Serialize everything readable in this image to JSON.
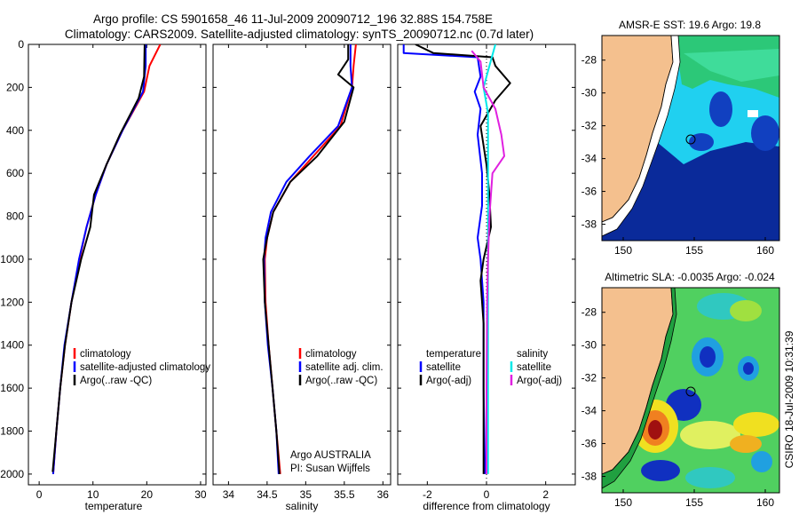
{
  "header": {
    "line1": "Argo profile: CS 5901658_46 11-Jul-2009 20090712_196 32.88S 154.758E",
    "line2": "Climatology: CARS2009. Satellite-adjusted climatology: synTS_20090712.nc (0.7d later)"
  },
  "colors": {
    "clim": "#ff0000",
    "sat": "#0000ff",
    "argo": "#000000",
    "sal_sat": "#00e8e8",
    "sal_argo": "#e020e0"
  },
  "chart_data": [
    {
      "type": "line",
      "name": "temperature",
      "xlabel": "temperature",
      "ylabel": "",
      "xlim": [
        -2,
        31
      ],
      "ylim": [
        2050,
        0
      ],
      "xticks": [
        0,
        10,
        20,
        30
      ],
      "yticks": [
        0,
        200,
        400,
        600,
        800,
        1000,
        1200,
        1400,
        1600,
        1800,
        2000
      ],
      "legend": [
        "climatology",
        "satellite-adjusted climatology",
        "Argo(..raw -QC)"
      ],
      "series": [
        {
          "name": "climatology",
          "color": "#ff0000",
          "points": [
            [
              22.5,
              0
            ],
            [
              20.5,
              100
            ],
            [
              19.5,
              220
            ],
            [
              15.5,
              400
            ],
            [
              12.5,
              560
            ],
            [
              10.5,
              700
            ],
            [
              8.8,
              850
            ],
            [
              7.5,
              1000
            ],
            [
              6.0,
              1200
            ],
            [
              4.8,
              1400
            ],
            [
              3.9,
              1600
            ],
            [
              3.2,
              1800
            ],
            [
              2.6,
              2000
            ]
          ]
        },
        {
          "name": "satellite-adjusted climatology",
          "color": "#0000ff",
          "points": [
            [
              19.8,
              0
            ],
            [
              19.8,
              100
            ],
            [
              19.3,
              220
            ],
            [
              15.5,
              400
            ],
            [
              12.5,
              560
            ],
            [
              10.5,
              700
            ],
            [
              8.8,
              850
            ],
            [
              7.4,
              1000
            ],
            [
              6.0,
              1200
            ],
            [
              4.7,
              1400
            ],
            [
              3.9,
              1600
            ],
            [
              3.2,
              1800
            ],
            [
              2.6,
              2000
            ]
          ]
        },
        {
          "name": "Argo(..raw -QC)",
          "color": "#000000",
          "points": [
            [
              19.6,
              0
            ],
            [
              19.5,
              150
            ],
            [
              18.5,
              250
            ],
            [
              15.0,
              420
            ],
            [
              12.5,
              560
            ],
            [
              10.2,
              700
            ],
            [
              9.5,
              850
            ],
            [
              7.8,
              1000
            ],
            [
              6.0,
              1200
            ],
            [
              4.8,
              1400
            ],
            [
              3.9,
              1600
            ],
            [
              3.2,
              1800
            ],
            [
              2.5,
              1990
            ]
          ]
        }
      ]
    },
    {
      "type": "line",
      "name": "salinity",
      "xlabel": "salinity",
      "xlim": [
        33.8,
        36.1
      ],
      "ylim": [
        2050,
        0
      ],
      "xticks": [
        34,
        34.5,
        35,
        35.5,
        36
      ],
      "legend": [
        "climatology",
        "satellite adj. clim.",
        "Argo(..raw -QC)"
      ],
      "annotation": [
        "Argo AUSTRALIA",
        "PI: Susan Wijffels"
      ],
      "series": [
        {
          "name": "climatology",
          "color": "#ff0000",
          "points": [
            [
              35.65,
              0
            ],
            [
              35.62,
              100
            ],
            [
              35.6,
              200
            ],
            [
              35.45,
              380
            ],
            [
              35.1,
              520
            ],
            [
              34.8,
              640
            ],
            [
              34.58,
              780
            ],
            [
              34.5,
              900
            ],
            [
              34.47,
              1000
            ],
            [
              34.48,
              1200
            ],
            [
              34.52,
              1400
            ],
            [
              34.57,
              1600
            ],
            [
              34.62,
              1800
            ],
            [
              34.67,
              2000
            ]
          ]
        },
        {
          "name": "satellite adj. clim.",
          "color": "#0000ff",
          "points": [
            [
              35.58,
              0
            ],
            [
              35.58,
              100
            ],
            [
              35.6,
              200
            ],
            [
              35.42,
              380
            ],
            [
              35.05,
              520
            ],
            [
              34.75,
              640
            ],
            [
              34.55,
              780
            ],
            [
              34.48,
              900
            ],
            [
              34.46,
              1000
            ],
            [
              34.47,
              1200
            ],
            [
              34.51,
              1400
            ],
            [
              34.57,
              1600
            ],
            [
              34.62,
              1800
            ],
            [
              34.65,
              2000
            ]
          ]
        },
        {
          "name": "Argo(..raw -QC)",
          "color": "#000000",
          "points": [
            [
              35.55,
              0
            ],
            [
              35.55,
              70
            ],
            [
              35.42,
              140
            ],
            [
              35.62,
              200
            ],
            [
              35.5,
              360
            ],
            [
              35.15,
              520
            ],
            [
              34.8,
              640
            ],
            [
              34.58,
              780
            ],
            [
              34.5,
              900
            ],
            [
              34.45,
              1000
            ],
            [
              34.47,
              1200
            ],
            [
              34.52,
              1400
            ],
            [
              34.57,
              1600
            ],
            [
              34.62,
              1800
            ],
            [
              34.66,
              2000
            ]
          ]
        }
      ]
    },
    {
      "type": "line",
      "name": "difference",
      "xlabel": "difference from climatology",
      "xlim": [
        -3,
        3
      ],
      "ylim": [
        2050,
        0
      ],
      "xticks": [
        -2,
        0,
        2
      ],
      "legend": [
        "temperature",
        "satellite",
        "Argo(-adj)",
        "salinity",
        "satellite",
        "Argo(-adj)"
      ],
      "series": [
        {
          "name": "temperature satellite",
          "color": "#0000ff",
          "points": [
            [
              -2.8,
              0
            ],
            [
              -2.8,
              40
            ],
            [
              -0.3,
              60
            ],
            [
              -0.2,
              150
            ],
            [
              -0.4,
              220
            ],
            [
              -0.2,
              300
            ],
            [
              -0.3,
              420
            ],
            [
              -0.15,
              600
            ],
            [
              -0.15,
              750
            ],
            [
              -0.3,
              900
            ],
            [
              -0.2,
              1000
            ],
            [
              -0.1,
              1200
            ],
            [
              -0.1,
              1600
            ],
            [
              -0.05,
              2000
            ]
          ]
        },
        {
          "name": "temperature Argo(-adj)",
          "color": "#000000",
          "points": [
            [
              -2.4,
              0
            ],
            [
              -1.8,
              40
            ],
            [
              0.2,
              60
            ],
            [
              0.3,
              100
            ],
            [
              0.8,
              180
            ],
            [
              0.3,
              260
            ],
            [
              -0.2,
              380
            ],
            [
              0,
              560
            ],
            [
              0.1,
              700
            ],
            [
              0.15,
              850
            ],
            [
              -0.1,
              1000
            ],
            [
              -0.2,
              1100
            ],
            [
              -0.1,
              1300
            ],
            [
              -0.1,
              1700
            ],
            [
              -0.1,
              2000
            ]
          ]
        },
        {
          "name": "salinity satellite",
          "color": "#00e8e8",
          "points": [
            [
              0.3,
              0
            ],
            [
              0.1,
              100
            ],
            [
              -0.1,
              200
            ],
            [
              0.05,
              320
            ],
            [
              0.05,
              500
            ],
            [
              0.05,
              800
            ],
            [
              0.05,
              1000
            ],
            [
              0.05,
              1400
            ],
            [
              0.05,
              2000
            ]
          ]
        },
        {
          "name": "salinity Argo(-adj)",
          "color": "#e020e0",
          "points": [
            [
              -0.5,
              30
            ],
            [
              -0.2,
              80
            ],
            [
              -0.1,
              200
            ],
            [
              0.3,
              300
            ],
            [
              0.5,
              420
            ],
            [
              0.6,
              520
            ],
            [
              0.2,
              600
            ],
            [
              0.1,
              800
            ],
            [
              0.05,
              1000
            ],
            [
              0.02,
              1200
            ],
            [
              0,
              1600
            ],
            [
              0,
              2000
            ]
          ]
        }
      ]
    },
    {
      "type": "heatmap",
      "name": "sst-map",
      "title": "AMSR-E SST: 19.6 Argo: 19.8",
      "xticks": [
        150,
        155,
        160
      ],
      "yticks": [
        -28,
        -30,
        -32,
        -34,
        -36,
        -38
      ],
      "xlim": [
        148.5,
        161
      ],
      "ylim": [
        -39,
        -26.5
      ],
      "argo_position": [
        154.758,
        -32.88
      ]
    },
    {
      "type": "heatmap",
      "name": "sla-map",
      "title": "Altimetric SLA: -0.0035 Argo: -0.024",
      "xticks": [
        150,
        155,
        160
      ],
      "yticks": [
        -28,
        -30,
        -32,
        -34,
        -36,
        -38
      ],
      "xlim": [
        148.5,
        161
      ],
      "ylim": [
        -39,
        -26.5
      ],
      "argo_position": [
        154.758,
        -32.88
      ]
    }
  ],
  "side_label": "CSIRO 18-Jul-2009 10:31:39"
}
